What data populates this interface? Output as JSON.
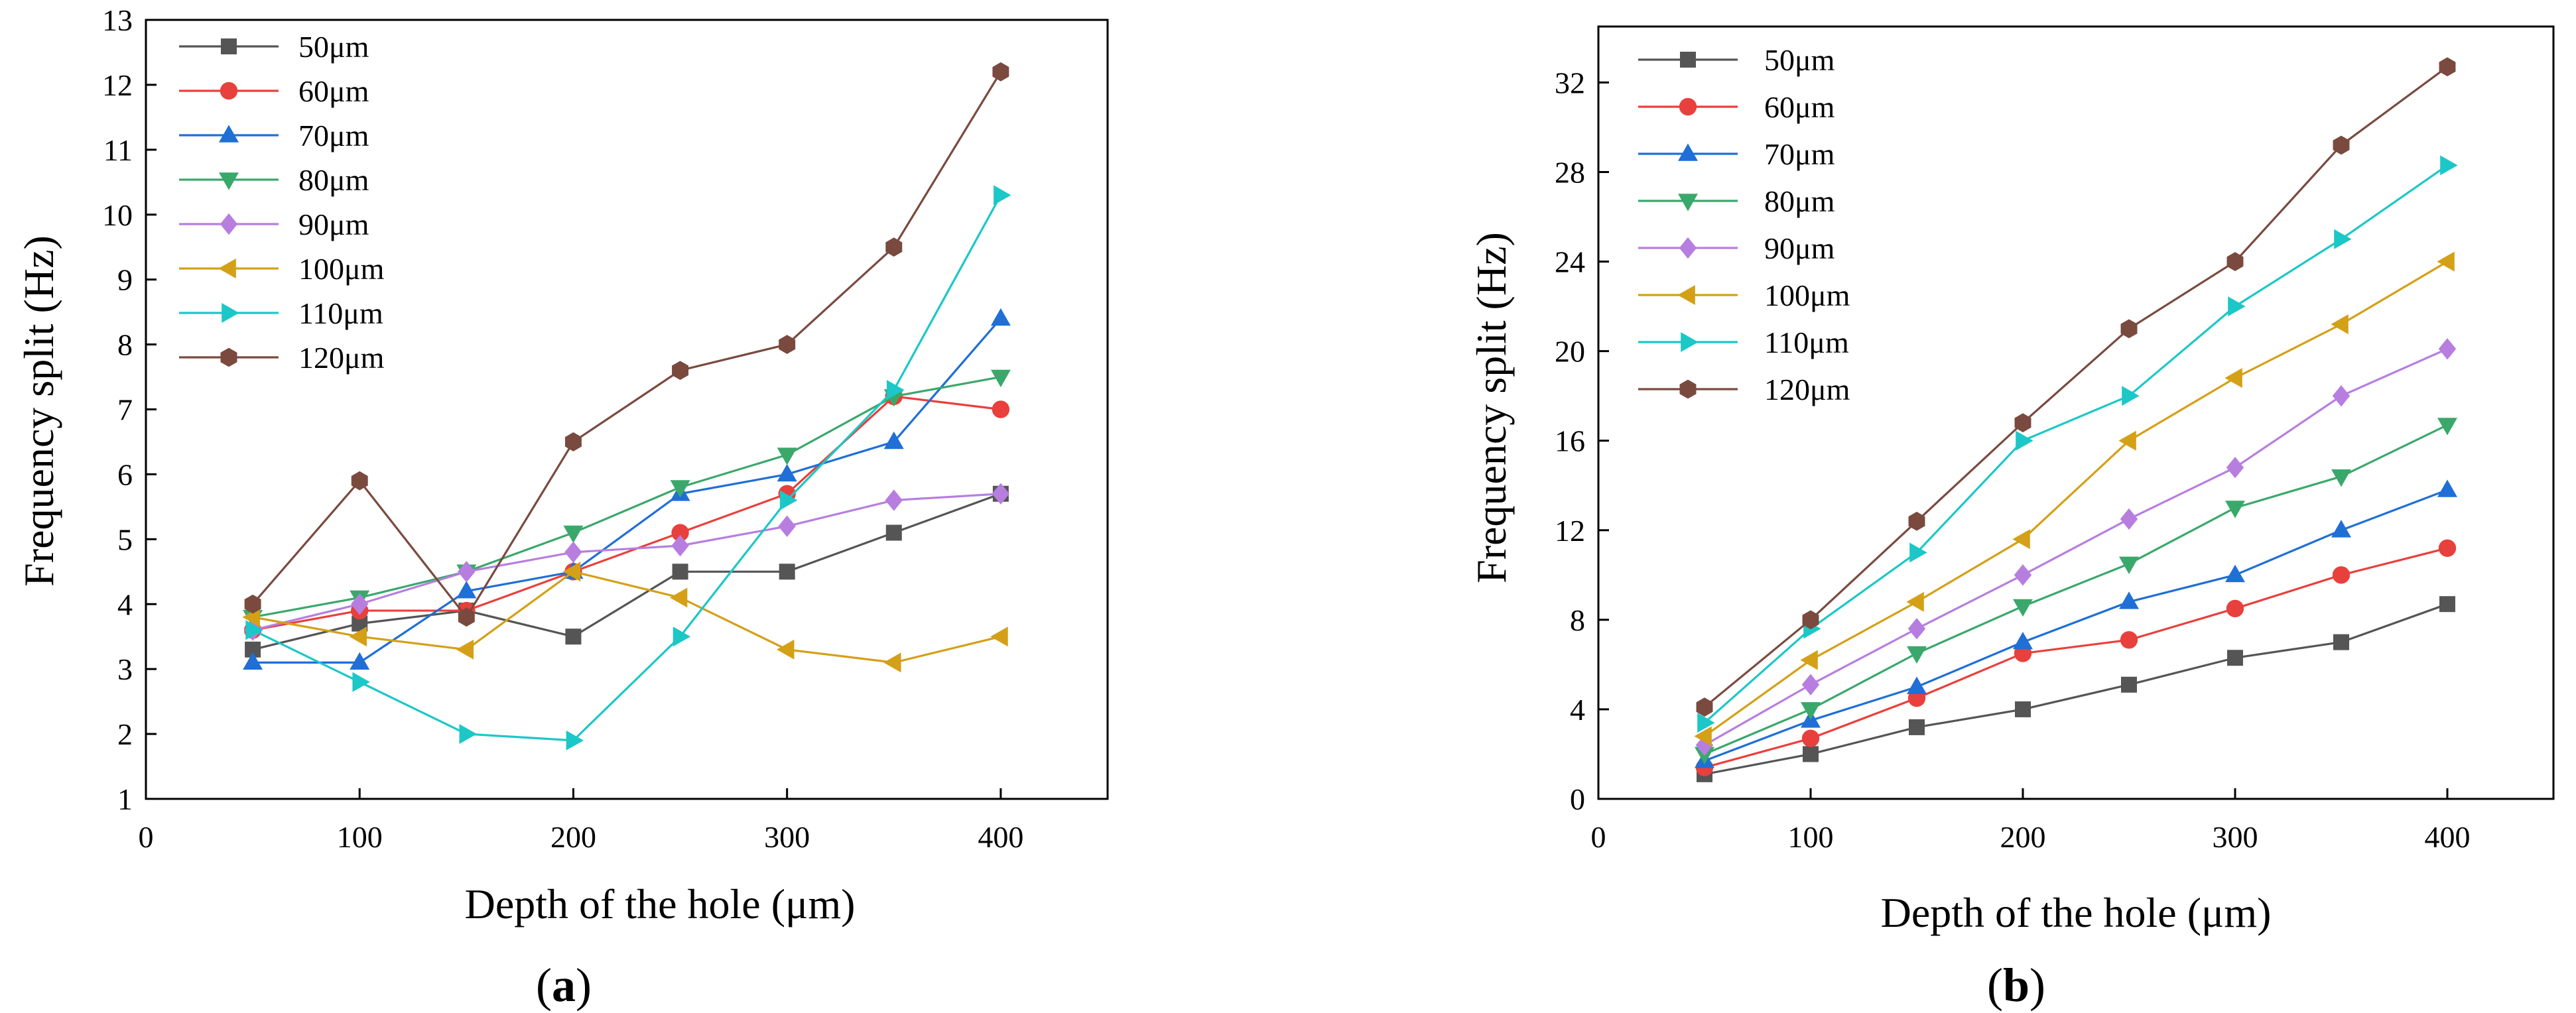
{
  "chart_data": [
    {
      "type": "line",
      "panel_label": "a",
      "xlabel": "Depth of the hole (μm)",
      "ylabel": "Frequency split (Hz)",
      "xlim": [
        0,
        450
      ],
      "ylim": [
        1,
        13
      ],
      "xticks": [
        0,
        100,
        200,
        300,
        400
      ],
      "yticks": [
        1,
        2,
        3,
        4,
        5,
        6,
        7,
        8,
        9,
        10,
        11,
        12,
        13
      ],
      "grid": false,
      "legend_position": "top-left",
      "x": [
        50,
        100,
        150,
        200,
        250,
        300,
        350,
        400
      ],
      "series": [
        {
          "name": "50μm",
          "color": "#555555",
          "marker": "square",
          "values": [
            3.3,
            3.7,
            3.9,
            3.5,
            4.5,
            4.5,
            5.1,
            5.7
          ]
        },
        {
          "name": "60μm",
          "color": "#e8403c",
          "marker": "circle",
          "values": [
            3.6,
            3.9,
            3.9,
            4.5,
            5.1,
            5.7,
            7.2,
            7.0
          ]
        },
        {
          "name": "70μm",
          "color": "#1f6fd6",
          "marker": "triangle-up",
          "values": [
            3.1,
            3.1,
            4.2,
            4.5,
            5.7,
            6.0,
            6.5,
            8.4
          ]
        },
        {
          "name": "80μm",
          "color": "#3aa86b",
          "marker": "triangle-down",
          "values": [
            3.8,
            4.1,
            4.5,
            5.1,
            5.8,
            6.3,
            7.2,
            7.5
          ]
        },
        {
          "name": "90μm",
          "color": "#b77ee0",
          "marker": "diamond",
          "values": [
            3.6,
            4.0,
            4.5,
            4.8,
            4.9,
            5.2,
            5.6,
            5.7
          ]
        },
        {
          "name": "100μm",
          "color": "#d4a017",
          "marker": "triangle-left",
          "values": [
            3.8,
            3.5,
            3.3,
            4.5,
            4.1,
            3.3,
            3.1,
            3.5
          ]
        },
        {
          "name": "110μm",
          "color": "#1cc7c7",
          "marker": "triangle-right",
          "values": [
            3.6,
            2.8,
            2.0,
            1.9,
            3.5,
            5.6,
            7.3,
            10.3
          ]
        },
        {
          "name": "120μm",
          "color": "#7a4a3f",
          "marker": "hexagon",
          "values": [
            4.0,
            5.9,
            3.8,
            6.5,
            7.6,
            8.0,
            9.5,
            12.2
          ]
        }
      ]
    },
    {
      "type": "line",
      "panel_label": "b",
      "xlabel": "Depth of the hole (μm)",
      "ylabel": "Frequency split (Hz)",
      "xlim": [
        0,
        450
      ],
      "ylim": [
        0,
        34.5
      ],
      "xticks": [
        0,
        100,
        200,
        300,
        400
      ],
      "yticks": [
        0,
        4,
        8,
        12,
        16,
        20,
        24,
        28,
        32
      ],
      "grid": false,
      "legend_position": "top-left",
      "x": [
        50,
        100,
        150,
        200,
        250,
        300,
        350,
        400
      ],
      "series": [
        {
          "name": "50μm",
          "color": "#555555",
          "marker": "square",
          "values": [
            1.1,
            2.0,
            3.2,
            4.0,
            5.1,
            6.3,
            7.0,
            8.7
          ]
        },
        {
          "name": "60μm",
          "color": "#e8403c",
          "marker": "circle",
          "values": [
            1.4,
            2.7,
            4.5,
            6.5,
            7.1,
            8.5,
            10.0,
            11.2
          ]
        },
        {
          "name": "70μm",
          "color": "#1f6fd6",
          "marker": "triangle-up",
          "values": [
            1.7,
            3.5,
            5.0,
            7.0,
            8.8,
            10.0,
            12.0,
            13.8
          ]
        },
        {
          "name": "80μm",
          "color": "#3aa86b",
          "marker": "triangle-down",
          "values": [
            2.0,
            4.0,
            6.5,
            8.6,
            10.5,
            13.0,
            14.4,
            16.7
          ]
        },
        {
          "name": "90μm",
          "color": "#b77ee0",
          "marker": "diamond",
          "values": [
            2.4,
            5.1,
            7.6,
            10.0,
            12.5,
            14.8,
            18.0,
            20.1
          ]
        },
        {
          "name": "100μm",
          "color": "#d4a017",
          "marker": "triangle-left",
          "values": [
            2.8,
            6.2,
            8.8,
            11.6,
            16.0,
            18.8,
            21.2,
            24.0
          ]
        },
        {
          "name": "110μm",
          "color": "#1cc7c7",
          "marker": "triangle-right",
          "values": [
            3.4,
            7.6,
            11.0,
            16.0,
            18.0,
            22.0,
            25.0,
            28.3
          ]
        },
        {
          "name": "120μm",
          "color": "#7a4a3f",
          "marker": "hexagon",
          "values": [
            4.1,
            8.0,
            12.4,
            16.8,
            21.0,
            24.0,
            29.2,
            32.7
          ]
        }
      ]
    }
  ]
}
